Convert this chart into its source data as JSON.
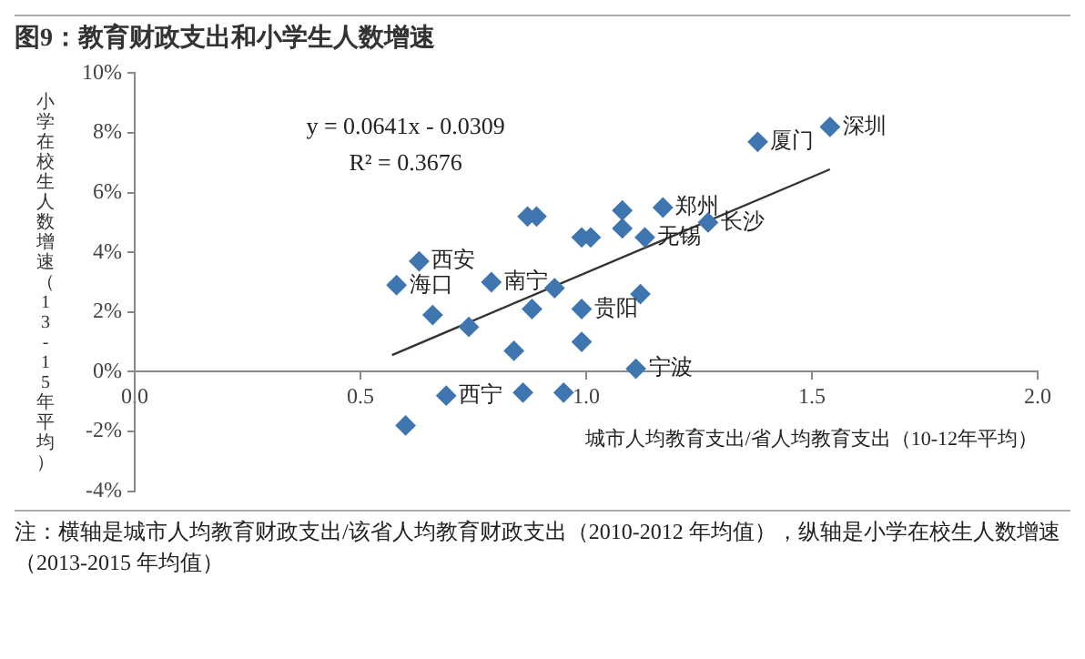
{
  "chart_data": {
    "type": "scatter",
    "title": "图9：教育财政支出和小学生人数增速",
    "xlabel": "城市人均教育支出/省人均教育支出（10-12年平均）",
    "ylabel": "小学在校生人数增速（13-15年平均）",
    "series": [
      {
        "color": "#3f76b0",
        "marker": "diamond",
        "x": [
          0.58,
          0.63,
          0.66,
          0.74,
          0.79,
          0.69,
          0.6,
          0.87,
          0.89,
          0.93,
          0.99,
          0.88,
          1.12,
          0.99,
          1.11,
          0.84,
          0.86,
          0.95,
          0.99,
          1.01,
          1.08,
          1.08,
          1.13,
          1.17,
          1.27,
          1.38,
          1.54
        ],
        "values": [
          2.9,
          3.7,
          1.9,
          1.5,
          3.0,
          -0.8,
          -1.8,
          5.2,
          5.2,
          2.8,
          2.1,
          2.1,
          2.6,
          1.0,
          0.1,
          0.7,
          -0.7,
          -0.7,
          4.5,
          4.5,
          5.4,
          4.8,
          4.5,
          5.5,
          5.0,
          7.7,
          8.2
        ]
      },
      {
        "type": "line",
        "color": "#333333",
        "x": [
          0.57,
          1.54
        ],
        "values": [
          0.56,
          6.78
        ]
      }
    ],
    "xlim": [
      0,
      2
    ],
    "ylim": [
      -4,
      10
    ],
    "xticks": [
      {
        "value": 0,
        "label": "0.0"
      },
      {
        "value": 0.5,
        "label": "0.5"
      },
      {
        "value": 1,
        "label": "1.0"
      },
      {
        "value": 1.5,
        "label": "1.5"
      },
      {
        "value": 2,
        "label": "2.0"
      }
    ],
    "yticks": [
      {
        "value": -4,
        "label": "-4%"
      },
      {
        "value": -2,
        "label": "-2%"
      },
      {
        "value": 0,
        "label": "0%"
      },
      {
        "value": 2,
        "label": "2%"
      },
      {
        "value": 4,
        "label": "4%"
      },
      {
        "value": 6,
        "label": "6%"
      },
      {
        "value": 8,
        "label": "8%"
      },
      {
        "value": 10,
        "label": "10%"
      }
    ],
    "grid": false,
    "legend": false,
    "annotations": [
      "y = 0.0641x - 0.0309",
      "R² = 0.3676",
      {
        "text": "深圳",
        "x": 1.54,
        "y": 8.2
      },
      {
        "text": "厦门",
        "x": 1.38,
        "y": 7.7
      },
      {
        "text": "长沙",
        "x": 1.27,
        "y": 5.0
      },
      {
        "text": "郑州",
        "x": 1.17,
        "y": 5.5
      },
      {
        "text": "无锡",
        "x": 1.13,
        "y": 4.5
      },
      {
        "text": "宁波",
        "x": 1.11,
        "y": 0.1
      },
      {
        "text": "贵阳",
        "x": 0.99,
        "y": 2.1
      },
      {
        "text": "西安",
        "x": 0.63,
        "y": 3.7
      },
      {
        "text": "海口",
        "x": 0.58,
        "y": 2.9
      },
      {
        "text": "南宁",
        "x": 0.79,
        "y": 3.0
      },
      {
        "text": "西宁",
        "x": 0.69,
        "y": -0.8
      },
      "注：横轴是城市人均教育财政支出/该省人均教育财政支出（2010-2012 年均值），纵轴是小学在校生人数增速（2013-2015 年均值）"
    ]
  }
}
